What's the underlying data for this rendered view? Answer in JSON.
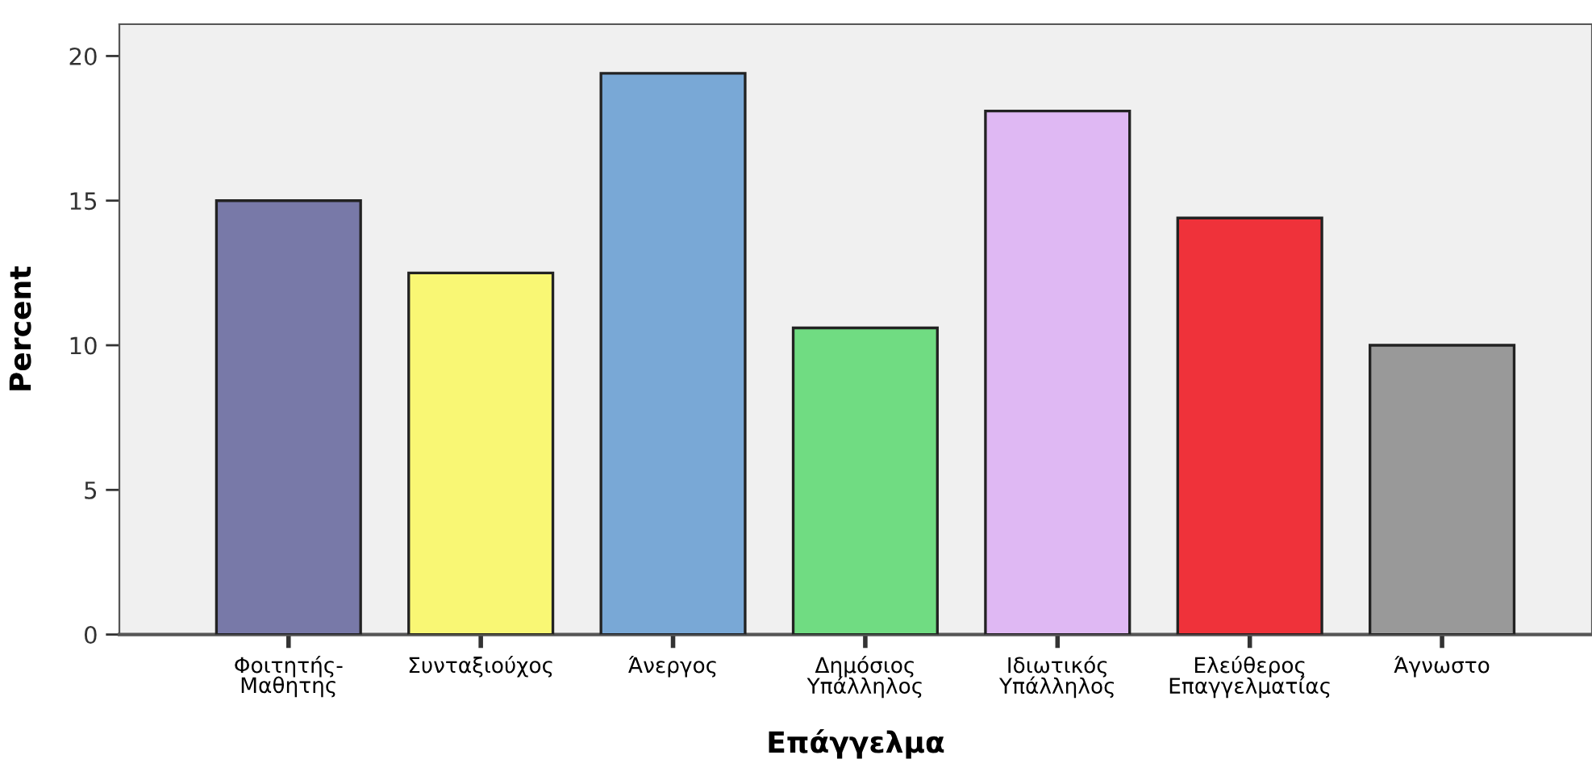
{
  "chart_data": {
    "type": "bar",
    "categories": [
      "Φοιτητής-\nΜαθητης",
      "Συνταξιούχος",
      "Άνεργος",
      "Δημόσιος\nΥπάλληλος",
      "Ιδιωτικός\nΥπάλληλος",
      "Ελεύθερος\nΕπαγγελματίας",
      "Άγνωστο"
    ],
    "values": [
      15.0,
      12.5,
      19.4,
      10.6,
      18.1,
      14.4,
      10.0
    ],
    "colors": [
      "#7879a8",
      "#f9f774",
      "#79a8d6",
      "#70dc82",
      "#dfb8f3",
      "#ef323a",
      "#999999"
    ],
    "xlabel": "Επάγγελμα",
    "ylabel": "Percent",
    "ylim": [
      0,
      21.1
    ],
    "yticks": [
      0,
      5,
      10,
      15,
      20
    ],
    "grid": false
  }
}
